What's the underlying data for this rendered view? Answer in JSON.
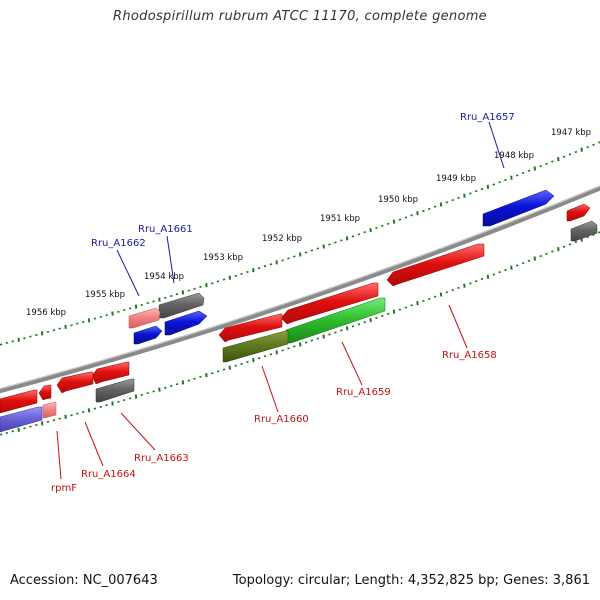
{
  "title": "Rhodospirillum rubrum ATCC 11170, complete genome",
  "footer": {
    "accession": "Accession: NC_007643",
    "summary": "Topology: circular; Length: 4,352,825 bp; Genes: 3,861"
  },
  "colors": {
    "backbone": "#8a8a8a",
    "tick": "#1f7a1f",
    "forward_gene": "#0a14d6",
    "reverse_gene": "#e01010",
    "label_forward": "#1a1aa0",
    "label_reverse": "#c81010"
  },
  "scale_labels": [
    "1947 kbp",
    "1948 kbp",
    "1949 kbp",
    "1950 kbp",
    "1951 kbp",
    "1952 kbp",
    "1953 kbp",
    "1954 kbp",
    "1955 kbp",
    "1956 kbp"
  ],
  "gene_labels": {
    "rru_a1657": "Rru_A1657",
    "rru_a1661": "Rru_A1661",
    "rru_a1662": "Rru_A1662",
    "rru_a1658": "Rru_A1658",
    "rru_a1659": "Rru_A1659",
    "rru_a1660": "Rru_A1660",
    "rru_a1663": "Rru_A1663",
    "rru_a1664": "Rru_A1664",
    "rpmf": "rpmF"
  }
}
